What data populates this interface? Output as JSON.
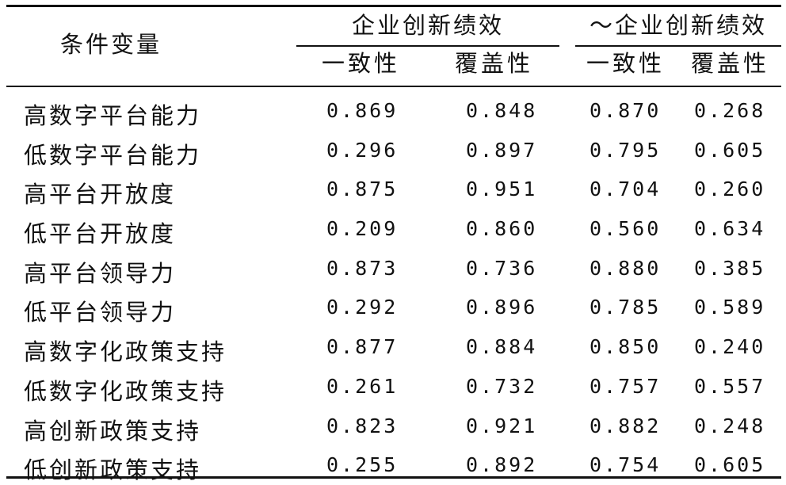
{
  "header": {
    "label": "条件变量",
    "group1": "企业创新绩效",
    "group2": "～企业创新绩效",
    "sub": [
      "一致性",
      "覆盖性",
      "一致性",
      "覆盖性"
    ]
  },
  "rows": [
    {
      "label": "高数字平台能力",
      "v": [
        "0.869",
        "0.848",
        "0.870",
        "0.268"
      ]
    },
    {
      "label": "低数字平台能力",
      "v": [
        "0.296",
        "0.897",
        "0.795",
        "0.605"
      ]
    },
    {
      "label": "高平台开放度",
      "v": [
        "0.875",
        "0.951",
        "0.704",
        "0.260"
      ]
    },
    {
      "label": "低平台开放度",
      "v": [
        "0.209",
        "0.860",
        "0.560",
        "0.634"
      ]
    },
    {
      "label": "高平台领导力",
      "v": [
        "0.873",
        "0.736",
        "0.880",
        "0.385"
      ]
    },
    {
      "label": "低平台领导力",
      "v": [
        "0.292",
        "0.896",
        "0.785",
        "0.589"
      ]
    },
    {
      "label": "高数字化政策支持",
      "v": [
        "0.877",
        "0.884",
        "0.850",
        "0.240"
      ]
    },
    {
      "label": "低数字化政策支持",
      "v": [
        "0.261",
        "0.732",
        "0.757",
        "0.557"
      ]
    },
    {
      "label": "高创新政策支持",
      "v": [
        "0.823",
        "0.921",
        "0.882",
        "0.248"
      ]
    },
    {
      "label": "低创新政策支持",
      "v": [
        "0.255",
        "0.892",
        "0.754",
        "0.605"
      ]
    }
  ]
}
